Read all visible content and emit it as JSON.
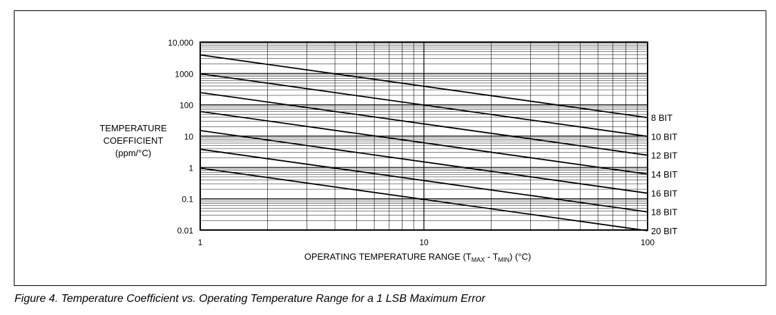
{
  "caption": "Figure 4. Temperature Coefficient vs. Operating Temperature Range for a 1 LSB Maximum Error",
  "chart_data": {
    "type": "line",
    "title": "",
    "ylabel_lines": [
      "TEMPERATURE",
      "COEFFICIENT",
      "(ppm/°C)"
    ],
    "xlabel": {
      "prefix": "OPERATING TEMPERATURE RANGE (T",
      "sub1": "MAX",
      "mid": " - T",
      "sub2": "MIN",
      "suffix": ") (°C)"
    },
    "x_scale": "log",
    "y_scale": "log",
    "xlim": [
      1,
      100
    ],
    "ylim": [
      0.01,
      10000
    ],
    "x_ticks": [
      {
        "value": 1,
        "label": "1"
      },
      {
        "value": 10,
        "label": "10"
      },
      {
        "value": 100,
        "label": "100"
      }
    ],
    "y_ticks": [
      {
        "value": 10000,
        "label": "10,000"
      },
      {
        "value": 1000,
        "label": "1000"
      },
      {
        "value": 100,
        "label": "100"
      },
      {
        "value": 10,
        "label": "10"
      },
      {
        "value": 1,
        "label": "1"
      },
      {
        "value": 0.1,
        "label": "0.1"
      },
      {
        "value": 0.01,
        "label": "0.01"
      }
    ],
    "grid": true,
    "legend": "series labels at right end of lines",
    "series": [
      {
        "name": "8 BIT",
        "x": [
          1,
          100
        ],
        "y": [
          3900,
          39
        ]
      },
      {
        "name": "10 BIT",
        "x": [
          1,
          100
        ],
        "y": [
          980,
          9.8
        ]
      },
      {
        "name": "12 BIT",
        "x": [
          1,
          100
        ],
        "y": [
          245,
          2.45
        ]
      },
      {
        "name": "14 BIT",
        "x": [
          1,
          100
        ],
        "y": [
          61,
          0.61
        ]
      },
      {
        "name": "16 BIT",
        "x": [
          1,
          100
        ],
        "y": [
          15,
          0.15
        ]
      },
      {
        "name": "18 BIT",
        "x": [
          1,
          100
        ],
        "y": [
          3.8,
          0.038
        ]
      },
      {
        "name": "20 BIT",
        "x": [
          1,
          100
        ],
        "y": [
          0.95,
          0.0095
        ]
      }
    ]
  }
}
